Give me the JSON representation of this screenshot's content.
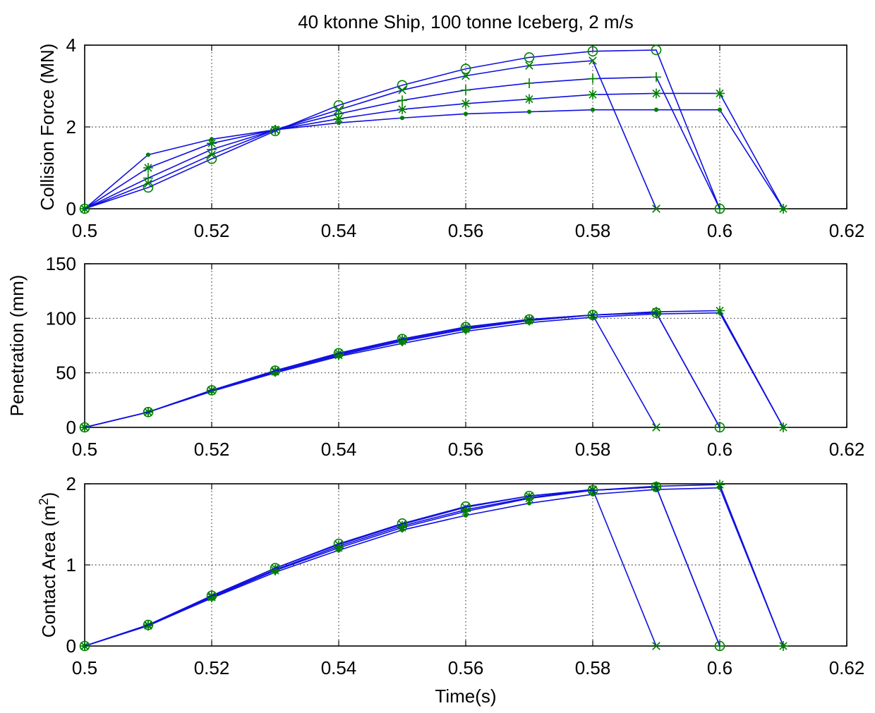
{
  "figure_title": "40 ktonne Ship, 100 tonne Iceberg, 2 m/s",
  "colors": {
    "line": "#1010e0",
    "marker": "#008000",
    "grid": "#000000"
  },
  "chart_data": [
    {
      "type": "line",
      "title": "40 ktonne Ship, 100 tonne Iceberg, 2 m/s",
      "xlabel": "",
      "ylabel": "Collision Force (MN)",
      "xlim": [
        0.5,
        0.62
      ],
      "ylim": [
        0,
        4
      ],
      "xticks": [
        0.5,
        0.52,
        0.54,
        0.56,
        0.58,
        0.6,
        0.62
      ],
      "xtick_labels": [
        "0.5",
        "0.52",
        "0.54",
        "0.56",
        "0.58",
        "0.6",
        "0.62"
      ],
      "yticks": [
        0,
        2,
        4
      ],
      "ytick_labels": [
        "0",
        "2",
        "4"
      ],
      "grid": true,
      "series": [
        {
          "marker": "dot",
          "x": [
            0.5,
            0.51,
            0.52,
            0.53,
            0.54,
            0.55,
            0.56,
            0.57,
            0.58,
            0.59,
            0.6,
            0.61
          ],
          "values": [
            0,
            1.32,
            1.7,
            1.93,
            2.1,
            2.22,
            2.32,
            2.37,
            2.42,
            2.42,
            2.42,
            0
          ]
        },
        {
          "marker": "star",
          "x": [
            0.5,
            0.51,
            0.52,
            0.53,
            0.54,
            0.55,
            0.56,
            0.57,
            0.58,
            0.59,
            0.6,
            0.61
          ],
          "values": [
            0,
            1.0,
            1.6,
            1.93,
            2.2,
            2.43,
            2.57,
            2.68,
            2.79,
            2.82,
            2.82,
            0
          ]
        },
        {
          "marker": "plus",
          "x": [
            0.5,
            0.51,
            0.52,
            0.53,
            0.54,
            0.55,
            0.56,
            0.57,
            0.58,
            0.59,
            0.6
          ],
          "values": [
            0,
            0.75,
            1.45,
            1.93,
            2.32,
            2.65,
            2.9,
            3.07,
            3.18,
            3.22,
            0
          ]
        },
        {
          "marker": "x",
          "x": [
            0.5,
            0.51,
            0.52,
            0.53,
            0.54,
            0.55,
            0.56,
            0.57,
            0.58,
            0.59
          ],
          "values": [
            0,
            0.62,
            1.32,
            1.93,
            2.42,
            2.9,
            3.25,
            3.5,
            3.62,
            0
          ]
        },
        {
          "marker": "circle",
          "x": [
            0.5,
            0.51,
            0.52,
            0.53,
            0.54,
            0.55,
            0.56,
            0.57,
            0.58,
            0.59,
            0.6
          ],
          "values": [
            0,
            0.52,
            1.22,
            1.9,
            2.53,
            3.02,
            3.42,
            3.7,
            3.85,
            3.88,
            0
          ]
        }
      ]
    },
    {
      "type": "line",
      "title": "",
      "xlabel": "",
      "ylabel": "Penetration (mm)",
      "xlim": [
        0.5,
        0.62
      ],
      "ylim": [
        0,
        150
      ],
      "xticks": [
        0.5,
        0.52,
        0.54,
        0.56,
        0.58,
        0.6,
        0.62
      ],
      "xtick_labels": [
        "0.5",
        "0.52",
        "0.54",
        "0.56",
        "0.58",
        "0.6",
        "0.62"
      ],
      "yticks": [
        0,
        50,
        100,
        150
      ],
      "ytick_labels": [
        "0",
        "50",
        "100",
        "150"
      ],
      "grid": true,
      "series": [
        {
          "marker": "dot",
          "x": [
            0.5,
            0.51,
            0.52,
            0.53,
            0.54,
            0.55,
            0.56,
            0.57,
            0.58,
            0.59,
            0.6,
            0.61
          ],
          "values": [
            0,
            14,
            33,
            50,
            65,
            77,
            88,
            96,
            101,
            104,
            105,
            0
          ]
        },
        {
          "marker": "star",
          "x": [
            0.5,
            0.51,
            0.52,
            0.53,
            0.54,
            0.55,
            0.56,
            0.57,
            0.58,
            0.59,
            0.6,
            0.61
          ],
          "values": [
            0,
            14,
            34,
            51,
            66,
            79,
            90,
            98,
            103,
            106,
            107,
            0
          ]
        },
        {
          "marker": "plus",
          "x": [
            0.5,
            0.51,
            0.52,
            0.53,
            0.54,
            0.55,
            0.56,
            0.57,
            0.58,
            0.59,
            0.6
          ],
          "values": [
            0,
            14,
            34,
            51,
            67,
            80,
            91,
            98,
            103,
            105,
            0
          ]
        },
        {
          "marker": "x",
          "x": [
            0.5,
            0.51,
            0.52,
            0.53,
            0.54,
            0.55,
            0.56,
            0.57,
            0.58,
            0.59
          ],
          "values": [
            0,
            14,
            34,
            52,
            68,
            81,
            92,
            99,
            103,
            0
          ]
        },
        {
          "marker": "circle",
          "x": [
            0.5,
            0.51,
            0.52,
            0.53,
            0.54,
            0.55,
            0.56,
            0.57,
            0.58,
            0.59,
            0.6
          ],
          "values": [
            0,
            14,
            34,
            52,
            68,
            81,
            92,
            99,
            103,
            105,
            0
          ]
        }
      ]
    },
    {
      "type": "line",
      "title": "",
      "xlabel": "Time(s)",
      "ylabel": "Contact Area (m",
      "ylabel_superscript": "2",
      "ylabel_suffix": ")",
      "xlim": [
        0.5,
        0.62
      ],
      "ylim": [
        0,
        2
      ],
      "xticks": [
        0.5,
        0.52,
        0.54,
        0.56,
        0.58,
        0.6,
        0.62
      ],
      "xtick_labels": [
        "0.5",
        "0.52",
        "0.54",
        "0.56",
        "0.58",
        "0.6",
        "0.62"
      ],
      "yticks": [
        0,
        1,
        2
      ],
      "ytick_labels": [
        "0",
        "1",
        "2"
      ],
      "grid": true,
      "series": [
        {
          "marker": "dot",
          "x": [
            0.5,
            0.51,
            0.52,
            0.53,
            0.54,
            0.55,
            0.56,
            0.57,
            0.58,
            0.59,
            0.6,
            0.61
          ],
          "values": [
            0,
            0.25,
            0.59,
            0.91,
            1.18,
            1.43,
            1.61,
            1.76,
            1.87,
            1.93,
            1.95,
            0
          ]
        },
        {
          "marker": "star",
          "x": [
            0.5,
            0.51,
            0.52,
            0.53,
            0.54,
            0.55,
            0.56,
            0.57,
            0.58,
            0.59,
            0.6,
            0.61
          ],
          "values": [
            0,
            0.25,
            0.6,
            0.93,
            1.21,
            1.46,
            1.66,
            1.82,
            1.92,
            1.97,
            1.99,
            0
          ]
        },
        {
          "marker": "plus",
          "x": [
            0.5,
            0.51,
            0.52,
            0.53,
            0.54,
            0.55,
            0.56,
            0.57,
            0.58,
            0.59,
            0.6
          ],
          "values": [
            0,
            0.26,
            0.61,
            0.94,
            1.23,
            1.48,
            1.68,
            1.83,
            1.92,
            1.96,
            0
          ]
        },
        {
          "marker": "x",
          "x": [
            0.5,
            0.51,
            0.52,
            0.53,
            0.54,
            0.55,
            0.56,
            0.57,
            0.58,
            0.59
          ],
          "values": [
            0,
            0.26,
            0.62,
            0.96,
            1.25,
            1.5,
            1.71,
            1.85,
            1.93,
            0
          ]
        },
        {
          "marker": "circle",
          "x": [
            0.5,
            0.51,
            0.52,
            0.53,
            0.54,
            0.55,
            0.56,
            0.57,
            0.58,
            0.59,
            0.6
          ],
          "values": [
            0,
            0.26,
            0.62,
            0.96,
            1.26,
            1.51,
            1.72,
            1.85,
            1.92,
            1.96,
            0
          ]
        }
      ]
    }
  ]
}
